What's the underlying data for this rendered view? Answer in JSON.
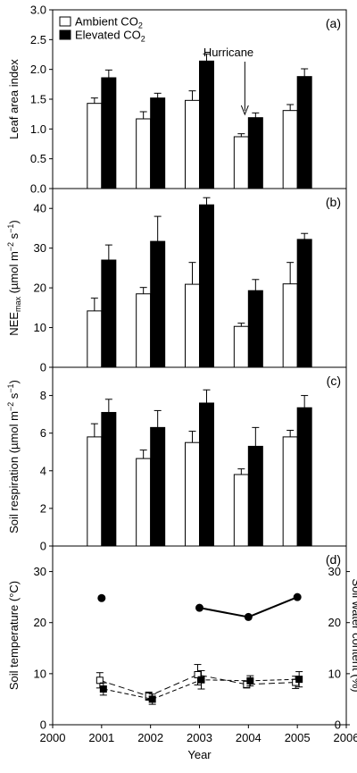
{
  "chart_data": [
    {
      "type": "bar",
      "panel_label": "(a)",
      "ylabel": "Leaf area index",
      "ylim": [
        0,
        3.0
      ],
      "yticks": [
        "0.0",
        "0.5",
        "1.0",
        "1.5",
        "2.0",
        "2.5",
        "3.0"
      ],
      "categories": [
        "2001",
        "2002",
        "2003",
        "2004",
        "2005"
      ],
      "legend": [
        "Ambient CO2",
        "Elevated CO2"
      ],
      "legend_position": "top-left",
      "annotation": "Hurricane",
      "series": [
        {
          "name": "Ambient CO2",
          "color": "#ffffff",
          "values": [
            1.43,
            1.17,
            1.48,
            0.87,
            1.31
          ],
          "errors": [
            0.09,
            0.12,
            0.16,
            0.05,
            0.1
          ]
        },
        {
          "name": "Elevated CO2",
          "color": "#000000",
          "values": [
            1.86,
            1.52,
            2.14,
            1.19,
            1.88
          ],
          "errors": [
            0.13,
            0.08,
            0.12,
            0.08,
            0.13
          ]
        }
      ]
    },
    {
      "type": "bar",
      "panel_label": "(b)",
      "ylabel": "NEEmax (µmol m−2 s−1)",
      "ylim": [
        0,
        45
      ],
      "yticks": [
        "0",
        "10",
        "20",
        "30",
        "40"
      ],
      "categories": [
        "2001",
        "2002",
        "2003",
        "2004",
        "2005"
      ],
      "series": [
        {
          "name": "Ambient CO2",
          "color": "#ffffff",
          "values": [
            14.2,
            18.5,
            20.9,
            10.3,
            21.0
          ],
          "errors": [
            3.2,
            1.6,
            5.5,
            0.8,
            5.4
          ]
        },
        {
          "name": "Elevated CO2",
          "color": "#000000",
          "values": [
            27.0,
            31.7,
            40.9,
            19.3,
            32.2
          ],
          "errors": [
            3.8,
            6.3,
            1.8,
            2.8,
            1.5
          ]
        }
      ]
    },
    {
      "type": "bar",
      "panel_label": "(c)",
      "ylabel": "Soil respiration (µmol m−2 s−1)",
      "ylim": [
        0,
        9.5
      ],
      "yticks": [
        "0",
        "2",
        "4",
        "6",
        "8"
      ],
      "categories": [
        "2001",
        "2002",
        "2003",
        "2004",
        "2005"
      ],
      "series": [
        {
          "name": "Ambient CO2",
          "color": "#ffffff",
          "values": [
            5.8,
            4.65,
            5.5,
            3.8,
            5.8
          ],
          "errors": [
            0.7,
            0.45,
            0.6,
            0.3,
            0.35
          ]
        },
        {
          "name": "Elevated CO2",
          "color": "#000000",
          "values": [
            7.1,
            6.3,
            7.6,
            5.3,
            7.35
          ],
          "errors": [
            0.7,
            0.9,
            0.7,
            1.0,
            0.65
          ]
        }
      ]
    },
    {
      "type": "line",
      "panel_label": "(d)",
      "ylabel": "Soil temperature (°C)",
      "ylabel_right": "Soil water content (%)",
      "xlabel": "Year",
      "xlim": [
        2000,
        2006
      ],
      "xticks": [
        "2000",
        "2001",
        "2002",
        "2003",
        "2004",
        "2005",
        "2006"
      ],
      "ylim": [
        0,
        35
      ],
      "yticks": [
        "0",
        "10",
        "20",
        "30"
      ],
      "ylim_right": [
        0,
        35
      ],
      "yticks_right": [
        "0",
        "10",
        "20",
        "30"
      ],
      "series": [
        {
          "name": "Soil temperature",
          "marker": "filled-circle",
          "linestyle": "solid",
          "segments": [
            [
              [
                2001,
                24.8
              ]
            ],
            [
              [
                2003,
                22.9
              ],
              [
                2004,
                21.1
              ],
              [
                2005,
                25.0
              ]
            ]
          ]
        },
        {
          "name": "Soil water content ambient",
          "marker": "open-square",
          "linestyle": "dashed",
          "x": [
            2001,
            2002,
            2003,
            2004,
            2005
          ],
          "y": [
            8.7,
            5.6,
            9.8,
            7.9,
            8.3
          ],
          "errors": [
            1.5,
            0.8,
            2.0,
            0.7,
            1.2
          ]
        },
        {
          "name": "Soil water content elevated",
          "marker": "filled-square",
          "linestyle": "dashed",
          "x": [
            2001,
            2002,
            2003,
            2004,
            2005
          ],
          "y": [
            7.0,
            5.0,
            8.8,
            8.6,
            8.9
          ],
          "errors": [
            1.2,
            1.0,
            1.8,
            1.0,
            1.5
          ]
        }
      ]
    }
  ]
}
